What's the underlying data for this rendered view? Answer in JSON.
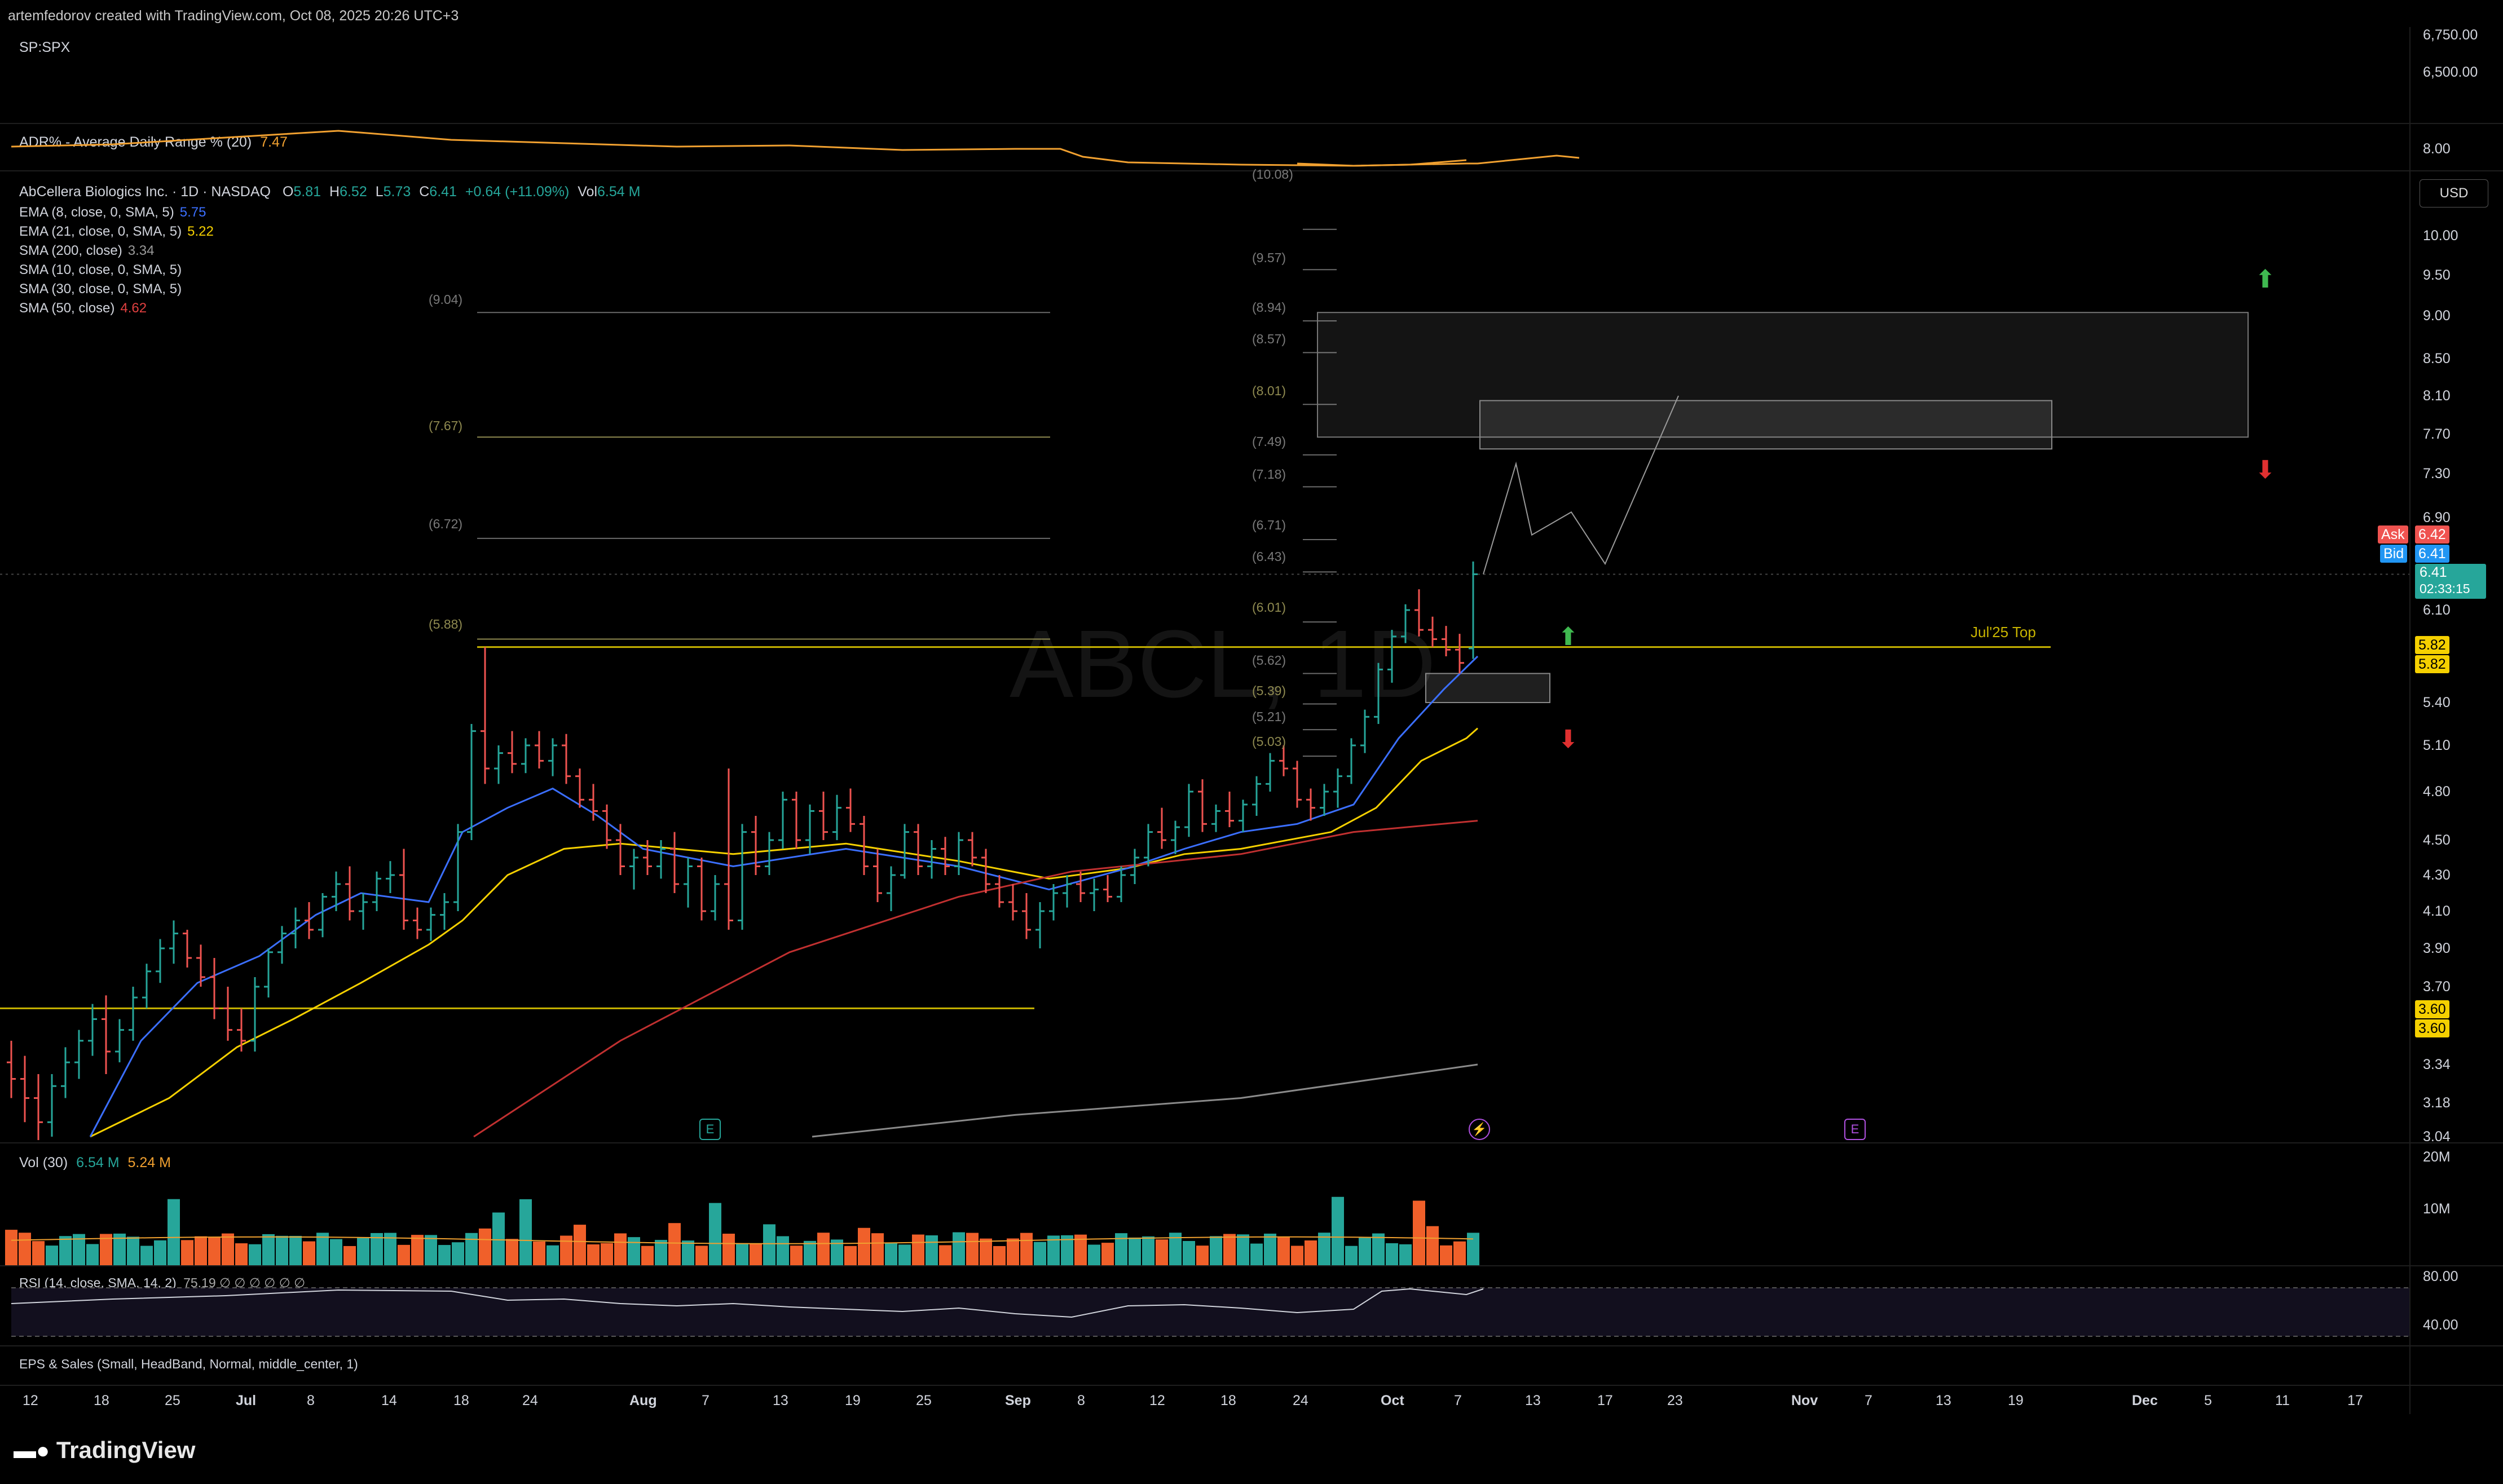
{
  "header": {
    "credit": "artemfedorov created with TradingView.com, Oct 08, 2025 20:26 UTC+3"
  },
  "pane_spx": {
    "symbol": "SP:SPX",
    "ticks": [
      "6,750.00",
      "6,500.00"
    ]
  },
  "pane_adr": {
    "label": "ADR% - Average Daily Range % (20)",
    "value": "7.47",
    "tick": "8.00",
    "color": "#f0a030"
  },
  "main": {
    "title_name": "AbCellera Biologics Inc. · 1D · NASDAQ",
    "o_label": "O",
    "o": "5.81",
    "h_label": "H",
    "h": "6.52",
    "l_label": "L",
    "l": "5.73",
    "c_label": "C",
    "c": "6.41",
    "change": "+0.64 (+11.09%)",
    "vol_label": "Vol",
    "vol": "6.54 M",
    "watermark": "ABCL, 1D",
    "indicators": [
      {
        "label": "EMA (8, close, 0, SMA, 5)",
        "value": "5.75",
        "color": "#3b6fff"
      },
      {
        "label": "EMA (21, close, 0, SMA, 5)",
        "value": "5.22",
        "color": "#f5d000"
      },
      {
        "label": "SMA (200, close)",
        "value": "3.34",
        "color": "#9a9a9a"
      },
      {
        "label": "SMA (10, close, 0, SMA, 5)",
        "value": "",
        "color": "#d1d4dc"
      },
      {
        "label": "SMA (30, close, 0, SMA, 5)",
        "value": "",
        "color": "#d1d4dc"
      },
      {
        "label": "SMA (50, close)",
        "value": "4.62",
        "color": "#e04040"
      }
    ],
    "currency": "USD",
    "price_ticks": [
      "10.00",
      "9.50",
      "9.00",
      "8.50",
      "8.10",
      "7.70",
      "7.30",
      "6.90",
      "6.10",
      "5.40",
      "5.10",
      "4.80",
      "4.50",
      "4.30",
      "4.10",
      "3.90",
      "3.70",
      "3.34",
      "3.18",
      "3.04"
    ],
    "ask_label": "Ask",
    "ask": "6.42",
    "bid_label": "Bid",
    "bid": "6.41",
    "last": "6.41",
    "countdown": "02:33:15",
    "level_582_a": "5.82",
    "level_582_b": "5.82",
    "level_360_a": "3.60",
    "level_360_b": "3.60",
    "jul_top_label": "Jul'25 Top",
    "fib_left": [
      "(9.04)",
      "(7.67)",
      "(6.72)",
      "(5.88)"
    ],
    "fib_right": [
      "(10.08)",
      "(9.57)",
      "(8.94)",
      "(8.57)",
      "(8.01)",
      "(7.49)",
      "(7.18)",
      "(6.71)",
      "(6.43)",
      "(6.01)",
      "(5.62)",
      "(5.39)",
      "(5.21)",
      "(5.03)"
    ],
    "earnings_marker": "E",
    "dividend_marker": "⚡",
    "colors": {
      "up": "#26a69a",
      "down": "#ef5350",
      "level": "#c8b400",
      "arrow_up": "#3fb950",
      "arrow_down": "#e03030"
    }
  },
  "volume": {
    "label": "Vol (30)",
    "v1": "6.54 M",
    "v2": "5.24 M",
    "ticks": [
      "20M",
      "10M"
    ]
  },
  "rsi": {
    "label": "RSI (14, close, SMA, 14, 2)",
    "value": "75.19 ∅ ∅ ∅ ∅ ∅ ∅",
    "ticks": [
      "80.00",
      "40.00"
    ]
  },
  "eps": {
    "label": "EPS & Sales (Small, HeadBand, Normal, middle_center, 1)"
  },
  "time_axis": [
    "12",
    "18",
    "25",
    "Jul",
    "8",
    "14",
    "18",
    "24",
    "Aug",
    "7",
    "13",
    "19",
    "25",
    "Sep",
    "8",
    "12",
    "18",
    "24",
    "Oct",
    "7",
    "13",
    "17",
    "23",
    "Nov",
    "7",
    "13",
    "19",
    "Dec",
    "5",
    "11",
    "17"
  ],
  "footer": {
    "brand": "TradingView"
  },
  "chart_data": {
    "type": "candlestick",
    "symbol": "ABCL",
    "interval": "1D",
    "title": "AbCellera Biologics Inc. · 1D · NASDAQ",
    "y_axis_ticks": [
      10.0,
      9.5,
      9.0,
      8.5,
      8.1,
      7.7,
      7.3,
      6.9,
      6.1,
      5.4,
      5.1,
      4.8,
      4.5,
      4.3,
      4.1,
      3.9,
      3.7,
      3.34,
      3.18,
      3.04
    ],
    "last_bar": {
      "open": 5.81,
      "high": 6.52,
      "low": 5.73,
      "close": 6.41
    },
    "levels": [
      {
        "label": "Jul'25 Top",
        "value": 5.82
      },
      {
        "label": "",
        "value": 3.6
      }
    ],
    "ema8": 5.75,
    "ema21": 5.22,
    "sma50": 4.62,
    "sma200": 3.34,
    "adr20": 7.47,
    "volume": 6.54,
    "volume_avg30": 5.24,
    "rsi14": 75.19,
    "x_labels": [
      "12",
      "18",
      "25",
      "Jul",
      "8",
      "14",
      "18",
      "24",
      "Aug",
      "7",
      "13",
      "19",
      "25",
      "Sep",
      "8",
      "12",
      "18",
      "24",
      "Oct",
      "7",
      "13",
      "17",
      "23",
      "Nov",
      "7",
      "13",
      "19",
      "Dec",
      "5",
      "11",
      "17"
    ]
  }
}
